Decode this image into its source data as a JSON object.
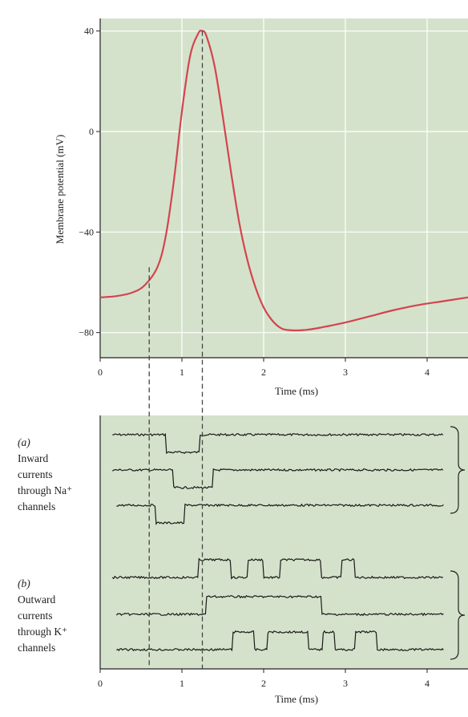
{
  "colors": {
    "panel_bg": "#d5e2cb",
    "gridline": "#ffffff",
    "ap_curve": "#d2454f",
    "trace": "#1a1a1a",
    "dashed": "#444444"
  },
  "chart_data": [
    {
      "type": "line",
      "title": "",
      "xlabel": "Time (ms)",
      "ylabel": "Membrane potential (mV)",
      "xlim": [
        0,
        4.5
      ],
      "ylim": [
        -90,
        45
      ],
      "xticks": [
        "0",
        "1",
        "2",
        "3",
        "4"
      ],
      "yticks": [
        "40",
        "0",
        "−40",
        "−80"
      ],
      "ytick_values": [
        40,
        0,
        -40,
        -80
      ],
      "xtick_values": [
        0,
        1,
        2,
        3,
        4
      ],
      "grid": true,
      "series": [
        {
          "x": [
            0,
            0.2,
            0.4,
            0.55,
            0.7,
            0.8,
            0.9,
            1.0,
            1.1,
            1.2,
            1.25,
            1.3,
            1.4,
            1.5,
            1.6,
            1.7,
            1.8,
            1.9,
            2.0,
            2.1,
            2.2,
            2.3,
            2.5,
            2.7,
            3.0,
            3.3,
            3.6,
            3.9,
            4.2,
            4.5
          ],
          "y": [
            -66,
            -65.5,
            -64,
            -61,
            -54,
            -42,
            -20,
            8,
            30,
            39,
            40,
            38,
            26,
            6,
            -16,
            -36,
            -51,
            -62,
            -70,
            -75,
            -78,
            -79,
            -79,
            -78,
            -76,
            -73.5,
            -71,
            -69,
            -67.5,
            -66
          ]
        }
      ],
      "reference_times": [
        0.6,
        1.25
      ]
    },
    {
      "type": "line",
      "xlabel": "Time (ms)",
      "xlim": [
        0,
        4.5
      ],
      "xticks": [
        "0",
        "1",
        "2",
        "3",
        "4"
      ],
      "xtick_values": [
        0,
        1,
        2,
        3,
        4
      ],
      "groups": [
        {
          "label_letter": "(a)",
          "label_lines": [
            "Inward",
            "currents",
            "through Na⁺",
            "channels"
          ],
          "direction": "down",
          "traces": [
            {
              "start": 0.15,
              "end": 4.2,
              "open_intervals": [
                [
                  0.8,
                  1.22
                ]
              ]
            },
            {
              "start": 0.15,
              "end": 4.2,
              "open_intervals": [
                [
                  0.9,
                  1.38
                ]
              ]
            },
            {
              "start": 0.2,
              "end": 4.2,
              "open_intervals": [
                [
                  0.68,
                  1.03
                ]
              ]
            }
          ]
        },
        {
          "label_letter": "(b)",
          "label_lines": [
            "Outward",
            "currents",
            "through K⁺",
            "channels"
          ],
          "direction": "up",
          "traces": [
            {
              "start": 0.15,
              "end": 4.2,
              "open_intervals": [
                [
                  1.2,
                  1.6
                ],
                [
                  1.8,
                  2.0
                ],
                [
                  2.2,
                  2.7
                ],
                [
                  2.95,
                  3.12
                ]
              ]
            },
            {
              "start": 0.2,
              "end": 4.2,
              "open_intervals": [
                [
                  1.3,
                  2.7
                ]
              ]
            },
            {
              "start": 0.2,
              "end": 4.2,
              "open_intervals": [
                [
                  1.62,
                  1.88
                ],
                [
                  2.05,
                  2.55
                ],
                [
                  2.72,
                  2.87
                ],
                [
                  3.12,
                  3.38
                ]
              ]
            }
          ]
        }
      ]
    }
  ]
}
